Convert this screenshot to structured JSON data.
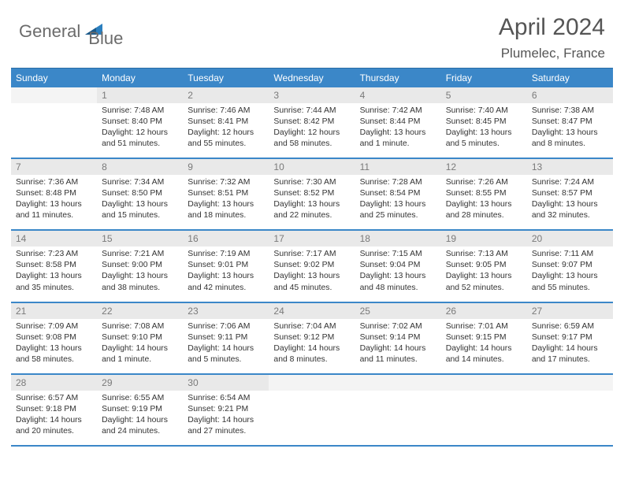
{
  "brand": {
    "word1": "General",
    "word2": "Blue",
    "text_color_gray": "#6b6b6b",
    "text_color_blue": "#2b7fbf",
    "triangle_color": "#2b7fbf"
  },
  "title": {
    "month": "April 2024",
    "location": "Plumelec, France"
  },
  "colors": {
    "header_bg": "#3b87c8",
    "header_border": "#2b6da5",
    "daynum_bg": "#e9e9e9",
    "daynum_empty_bg": "#f4f4f4",
    "daynum_color": "#7a7a7a",
    "week_divider": "#3b87c8",
    "body_text": "#333333",
    "title_text": "#555555",
    "page_bg": "#ffffff"
  },
  "day_names": [
    "Sunday",
    "Monday",
    "Tuesday",
    "Wednesday",
    "Thursday",
    "Friday",
    "Saturday"
  ],
  "weeks": [
    {
      "days": [
        {
          "num": "",
          "sunrise": "",
          "sunset": "",
          "daylight": ""
        },
        {
          "num": "1",
          "sunrise": "Sunrise: 7:48 AM",
          "sunset": "Sunset: 8:40 PM",
          "daylight": "Daylight: 12 hours and 51 minutes."
        },
        {
          "num": "2",
          "sunrise": "Sunrise: 7:46 AM",
          "sunset": "Sunset: 8:41 PM",
          "daylight": "Daylight: 12 hours and 55 minutes."
        },
        {
          "num": "3",
          "sunrise": "Sunrise: 7:44 AM",
          "sunset": "Sunset: 8:42 PM",
          "daylight": "Daylight: 12 hours and 58 minutes."
        },
        {
          "num": "4",
          "sunrise": "Sunrise: 7:42 AM",
          "sunset": "Sunset: 8:44 PM",
          "daylight": "Daylight: 13 hours and 1 minute."
        },
        {
          "num": "5",
          "sunrise": "Sunrise: 7:40 AM",
          "sunset": "Sunset: 8:45 PM",
          "daylight": "Daylight: 13 hours and 5 minutes."
        },
        {
          "num": "6",
          "sunrise": "Sunrise: 7:38 AM",
          "sunset": "Sunset: 8:47 PM",
          "daylight": "Daylight: 13 hours and 8 minutes."
        }
      ]
    },
    {
      "days": [
        {
          "num": "7",
          "sunrise": "Sunrise: 7:36 AM",
          "sunset": "Sunset: 8:48 PM",
          "daylight": "Daylight: 13 hours and 11 minutes."
        },
        {
          "num": "8",
          "sunrise": "Sunrise: 7:34 AM",
          "sunset": "Sunset: 8:50 PM",
          "daylight": "Daylight: 13 hours and 15 minutes."
        },
        {
          "num": "9",
          "sunrise": "Sunrise: 7:32 AM",
          "sunset": "Sunset: 8:51 PM",
          "daylight": "Daylight: 13 hours and 18 minutes."
        },
        {
          "num": "10",
          "sunrise": "Sunrise: 7:30 AM",
          "sunset": "Sunset: 8:52 PM",
          "daylight": "Daylight: 13 hours and 22 minutes."
        },
        {
          "num": "11",
          "sunrise": "Sunrise: 7:28 AM",
          "sunset": "Sunset: 8:54 PM",
          "daylight": "Daylight: 13 hours and 25 minutes."
        },
        {
          "num": "12",
          "sunrise": "Sunrise: 7:26 AM",
          "sunset": "Sunset: 8:55 PM",
          "daylight": "Daylight: 13 hours and 28 minutes."
        },
        {
          "num": "13",
          "sunrise": "Sunrise: 7:24 AM",
          "sunset": "Sunset: 8:57 PM",
          "daylight": "Daylight: 13 hours and 32 minutes."
        }
      ]
    },
    {
      "days": [
        {
          "num": "14",
          "sunrise": "Sunrise: 7:23 AM",
          "sunset": "Sunset: 8:58 PM",
          "daylight": "Daylight: 13 hours and 35 minutes."
        },
        {
          "num": "15",
          "sunrise": "Sunrise: 7:21 AM",
          "sunset": "Sunset: 9:00 PM",
          "daylight": "Daylight: 13 hours and 38 minutes."
        },
        {
          "num": "16",
          "sunrise": "Sunrise: 7:19 AM",
          "sunset": "Sunset: 9:01 PM",
          "daylight": "Daylight: 13 hours and 42 minutes."
        },
        {
          "num": "17",
          "sunrise": "Sunrise: 7:17 AM",
          "sunset": "Sunset: 9:02 PM",
          "daylight": "Daylight: 13 hours and 45 minutes."
        },
        {
          "num": "18",
          "sunrise": "Sunrise: 7:15 AM",
          "sunset": "Sunset: 9:04 PM",
          "daylight": "Daylight: 13 hours and 48 minutes."
        },
        {
          "num": "19",
          "sunrise": "Sunrise: 7:13 AM",
          "sunset": "Sunset: 9:05 PM",
          "daylight": "Daylight: 13 hours and 52 minutes."
        },
        {
          "num": "20",
          "sunrise": "Sunrise: 7:11 AM",
          "sunset": "Sunset: 9:07 PM",
          "daylight": "Daylight: 13 hours and 55 minutes."
        }
      ]
    },
    {
      "days": [
        {
          "num": "21",
          "sunrise": "Sunrise: 7:09 AM",
          "sunset": "Sunset: 9:08 PM",
          "daylight": "Daylight: 13 hours and 58 minutes."
        },
        {
          "num": "22",
          "sunrise": "Sunrise: 7:08 AM",
          "sunset": "Sunset: 9:10 PM",
          "daylight": "Daylight: 14 hours and 1 minute."
        },
        {
          "num": "23",
          "sunrise": "Sunrise: 7:06 AM",
          "sunset": "Sunset: 9:11 PM",
          "daylight": "Daylight: 14 hours and 5 minutes."
        },
        {
          "num": "24",
          "sunrise": "Sunrise: 7:04 AM",
          "sunset": "Sunset: 9:12 PM",
          "daylight": "Daylight: 14 hours and 8 minutes."
        },
        {
          "num": "25",
          "sunrise": "Sunrise: 7:02 AM",
          "sunset": "Sunset: 9:14 PM",
          "daylight": "Daylight: 14 hours and 11 minutes."
        },
        {
          "num": "26",
          "sunrise": "Sunrise: 7:01 AM",
          "sunset": "Sunset: 9:15 PM",
          "daylight": "Daylight: 14 hours and 14 minutes."
        },
        {
          "num": "27",
          "sunrise": "Sunrise: 6:59 AM",
          "sunset": "Sunset: 9:17 PM",
          "daylight": "Daylight: 14 hours and 17 minutes."
        }
      ]
    },
    {
      "days": [
        {
          "num": "28",
          "sunrise": "Sunrise: 6:57 AM",
          "sunset": "Sunset: 9:18 PM",
          "daylight": "Daylight: 14 hours and 20 minutes."
        },
        {
          "num": "29",
          "sunrise": "Sunrise: 6:55 AM",
          "sunset": "Sunset: 9:19 PM",
          "daylight": "Daylight: 14 hours and 24 minutes."
        },
        {
          "num": "30",
          "sunrise": "Sunrise: 6:54 AM",
          "sunset": "Sunset: 9:21 PM",
          "daylight": "Daylight: 14 hours and 27 minutes."
        },
        {
          "num": "",
          "sunrise": "",
          "sunset": "",
          "daylight": ""
        },
        {
          "num": "",
          "sunrise": "",
          "sunset": "",
          "daylight": ""
        },
        {
          "num": "",
          "sunrise": "",
          "sunset": "",
          "daylight": ""
        },
        {
          "num": "",
          "sunrise": "",
          "sunset": "",
          "daylight": ""
        }
      ]
    }
  ]
}
